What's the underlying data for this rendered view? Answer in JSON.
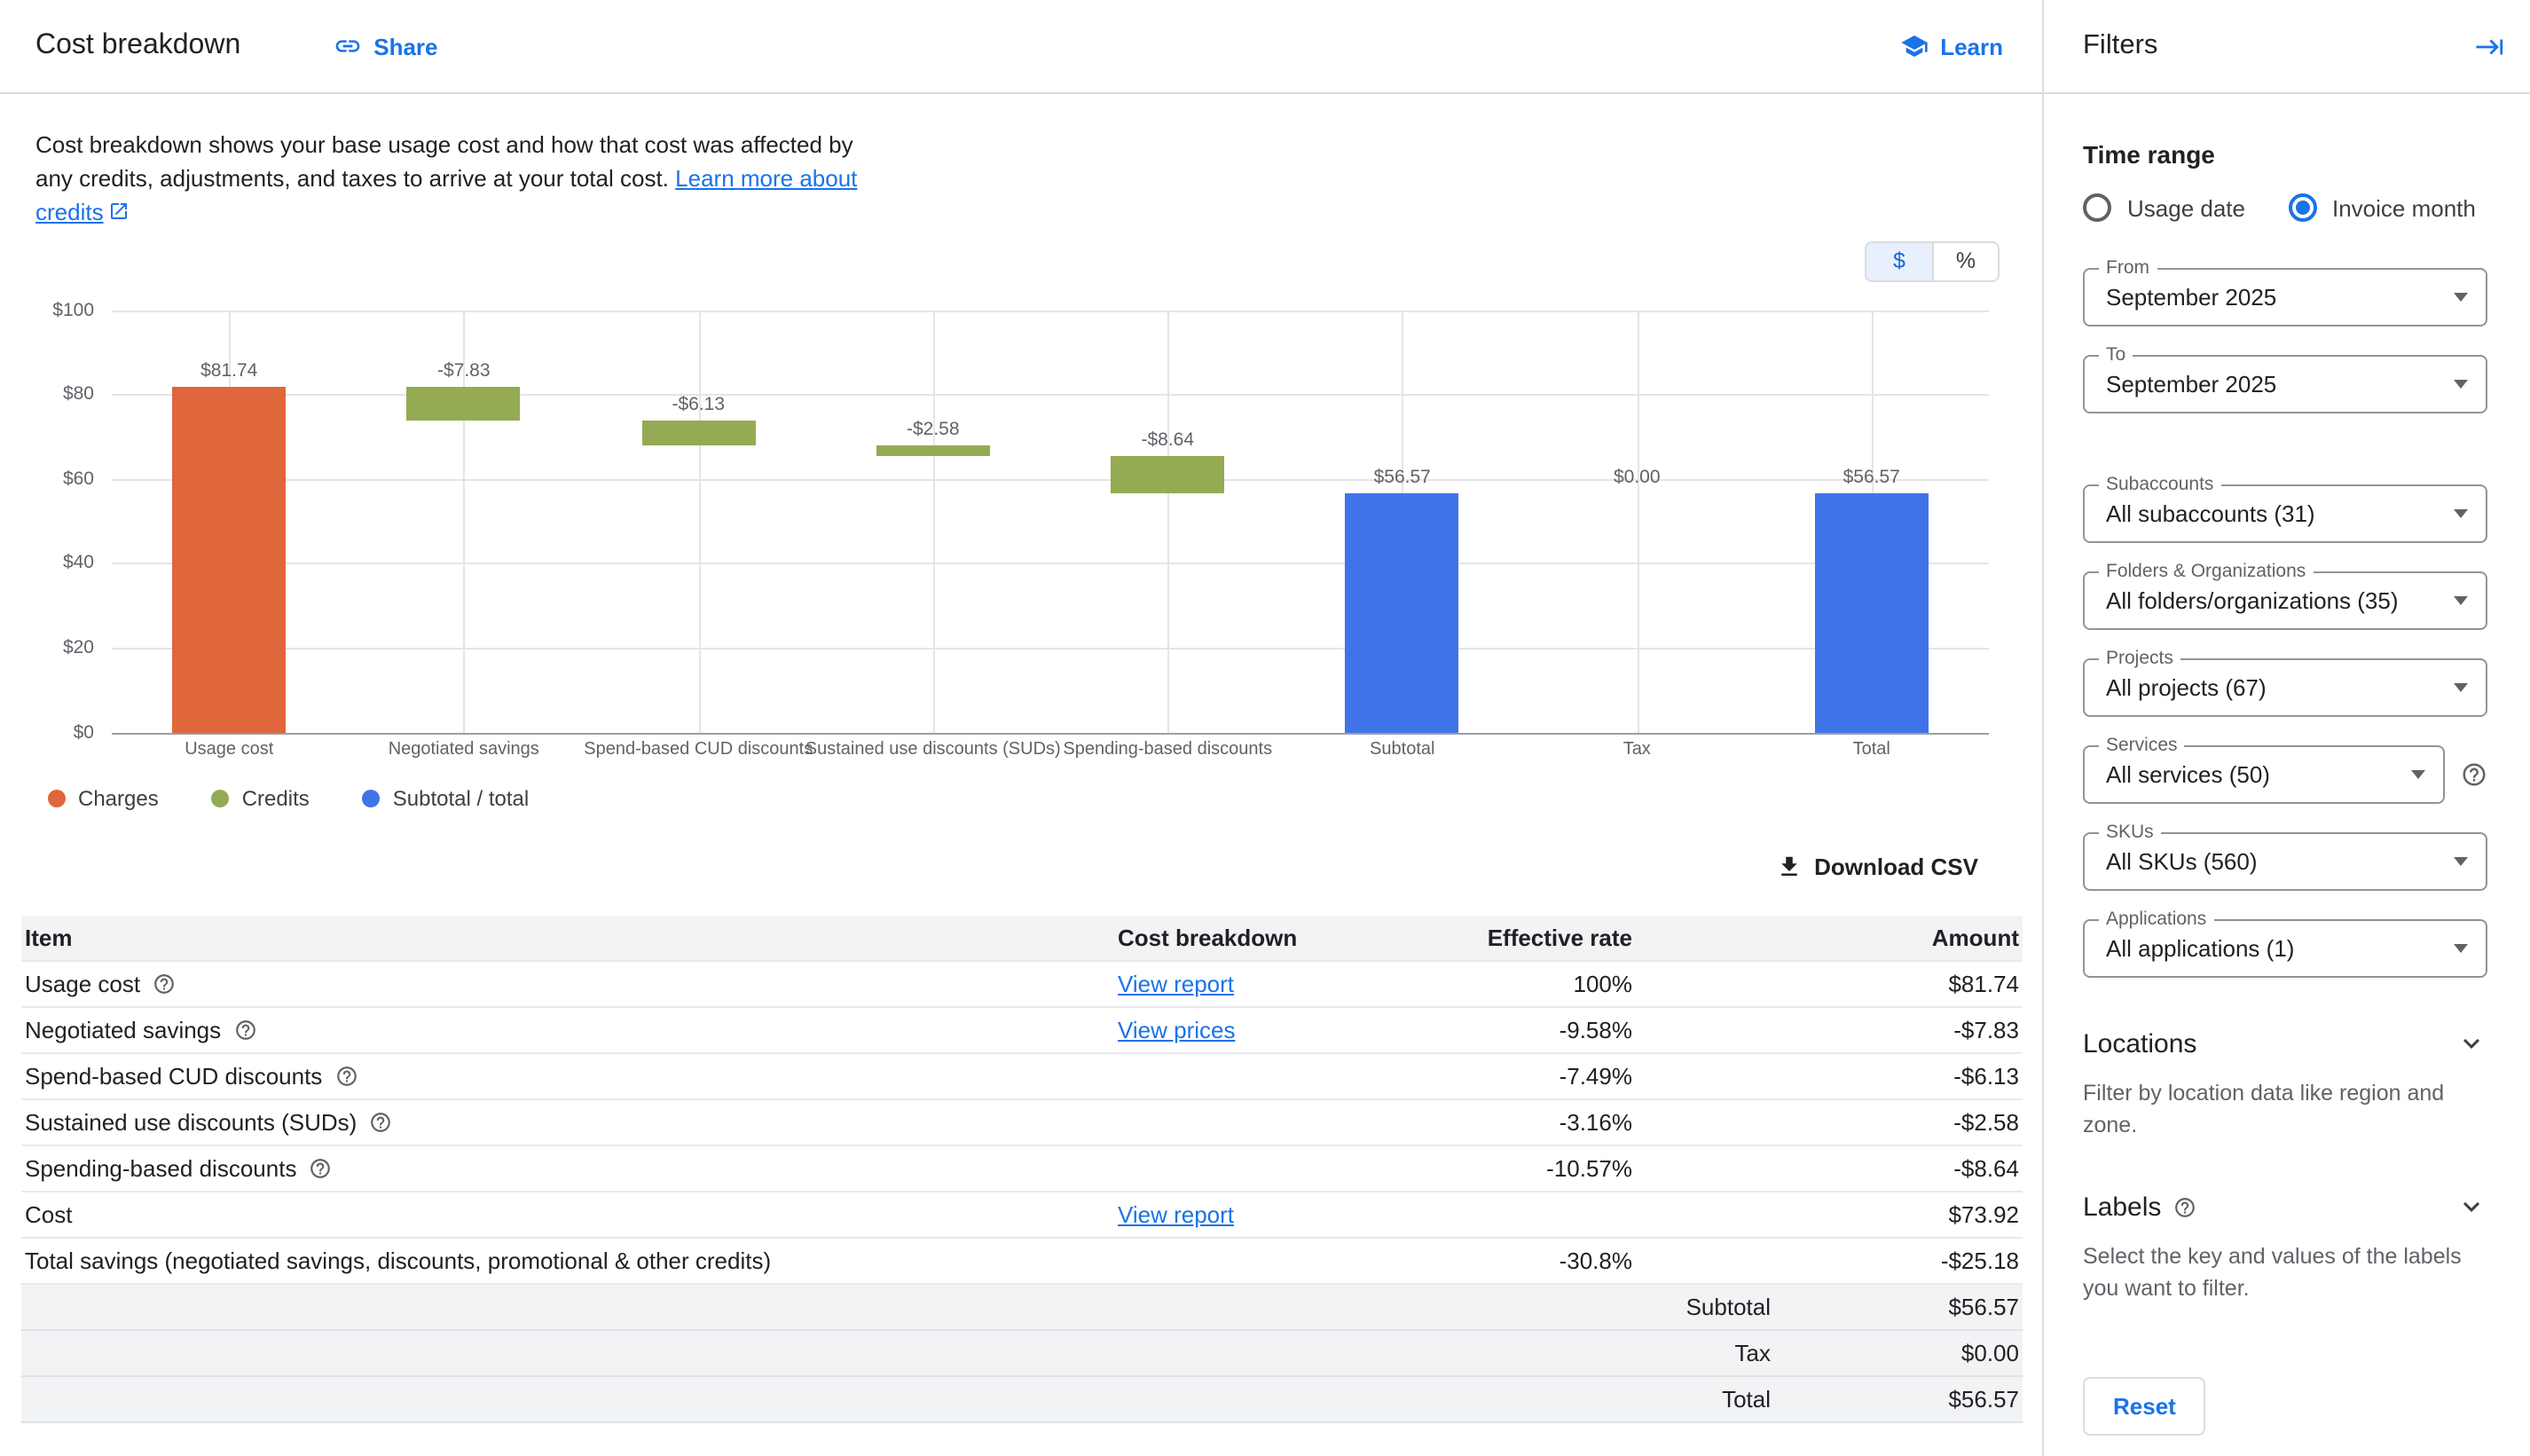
{
  "header": {
    "title": "Cost breakdown",
    "share_label": "Share",
    "learn_label": "Learn"
  },
  "intro": {
    "text": "Cost breakdown shows your base usage cost and how that cost was affected by any credits, adjustments, and taxes to arrive at your total cost.",
    "link_label": "Learn more about credits"
  },
  "unit_toggle": {
    "dollar_label": "$",
    "percent_label": "%",
    "selected": "$"
  },
  "chart_data": {
    "type": "bar",
    "subtype": "waterfall",
    "categories": [
      "Usage cost",
      "Negotiated savings",
      "Spend-based CUD discounts",
      "Sustained use discounts (SUDs)",
      "Spending-based discounts",
      "Subtotal",
      "Tax",
      "Total"
    ],
    "values": [
      81.74,
      -7.83,
      -6.13,
      -2.58,
      -8.64,
      56.57,
      0,
      56.57
    ],
    "bar_roles": [
      "charge",
      "credit",
      "credit",
      "credit",
      "credit",
      "total",
      "tax",
      "total"
    ],
    "bar_labels": [
      "$81.74",
      "-$7.83",
      "-$6.13",
      "-$2.58",
      "-$8.64",
      "$56.57",
      "$0.00",
      "$56.57"
    ],
    "y_tick_values": [
      0,
      20,
      40,
      60,
      80,
      100
    ],
    "y_tick_labels": [
      "$0",
      "$20",
      "$40",
      "$60",
      "$80",
      "$100"
    ],
    "ylim": [
      0,
      100
    ],
    "grid": true,
    "colors": {
      "charge": "#e0663c",
      "credit": "#94ab53",
      "total": "#4173e8"
    },
    "legend_position": "bottom-left",
    "legend": [
      {
        "label": "Charges",
        "color": "#e0663c"
      },
      {
        "label": "Credits",
        "color": "#94ab53"
      },
      {
        "label": "Subtotal / total",
        "color": "#4173e8"
      }
    ]
  },
  "download_label": "Download CSV",
  "table": {
    "headers": [
      "Item",
      "Cost breakdown",
      "Effective rate",
      "Amount"
    ],
    "rows": [
      {
        "item": "Usage cost",
        "help": true,
        "link": "View report",
        "rate": "100%",
        "amount": "$81.74"
      },
      {
        "item": "Negotiated savings",
        "help": true,
        "link": "View prices",
        "rate": "-9.58%",
        "amount": "-$7.83"
      },
      {
        "item": "Spend-based CUD discounts",
        "help": true,
        "link": "",
        "rate": "-7.49%",
        "amount": "-$6.13"
      },
      {
        "item": "Sustained use discounts (SUDs)",
        "help": true,
        "link": "",
        "rate": "-3.16%",
        "amount": "-$2.58"
      },
      {
        "item": "Spending-based discounts",
        "help": true,
        "link": "",
        "rate": "-10.57%",
        "amount": "-$8.64"
      },
      {
        "item": "Cost",
        "help": false,
        "link": "View report",
        "rate": "",
        "amount": "$73.92"
      },
      {
        "item": "Total savings (negotiated savings, discounts, promotional & other credits)",
        "help": false,
        "link": "",
        "rate": "-30.8%",
        "amount": "-$25.18"
      }
    ],
    "summary_rows": [
      {
        "label": "Subtotal",
        "amount": "$56.57"
      },
      {
        "label": "Tax",
        "amount": "$0.00"
      },
      {
        "label": "Total",
        "amount": "$56.57"
      }
    ]
  },
  "filters": {
    "title": "Filters",
    "time_range": {
      "heading": "Time range",
      "options": [
        {
          "label": "Usage date",
          "selected": false
        },
        {
          "label": "Invoice month",
          "selected": true
        }
      ]
    },
    "fields": [
      {
        "id": "from",
        "label": "From",
        "value": "September 2025",
        "gap_after": false,
        "help": false
      },
      {
        "id": "to",
        "label": "To",
        "value": "September 2025",
        "gap_after": true,
        "help": false
      },
      {
        "id": "subaccounts",
        "label": "Subaccounts",
        "value": "All subaccounts (31)",
        "gap_after": false,
        "help": false
      },
      {
        "id": "folders-organizations",
        "label": "Folders & Organizations",
        "value": "All folders/organizations (35)",
        "gap_after": false,
        "help": false
      },
      {
        "id": "projects",
        "label": "Projects",
        "value": "All projects (67)",
        "gap_after": false,
        "help": false
      },
      {
        "id": "services",
        "label": "Services",
        "value": "All services (50)",
        "gap_after": false,
        "help": true
      },
      {
        "id": "skus",
        "label": "SKUs",
        "value": "All SKUs (560)",
        "gap_after": false,
        "help": false
      },
      {
        "id": "applications",
        "label": "Applications",
        "value": "All applications (1)",
        "gap_after": false,
        "help": false
      }
    ],
    "sections": [
      {
        "id": "locations",
        "heading": "Locations",
        "help": false,
        "description": "Filter by location data like region and zone."
      },
      {
        "id": "labels",
        "heading": "Labels",
        "help": true,
        "description": "Select the key and values of the labels you want to filter."
      }
    ],
    "reset_label": "Reset"
  },
  "theme": {
    "link_blue": "#1a73e8",
    "border": "#dadce0",
    "band_bg": "#f1f3f4",
    "toggle_selected_bg": "#e8f0fe"
  }
}
